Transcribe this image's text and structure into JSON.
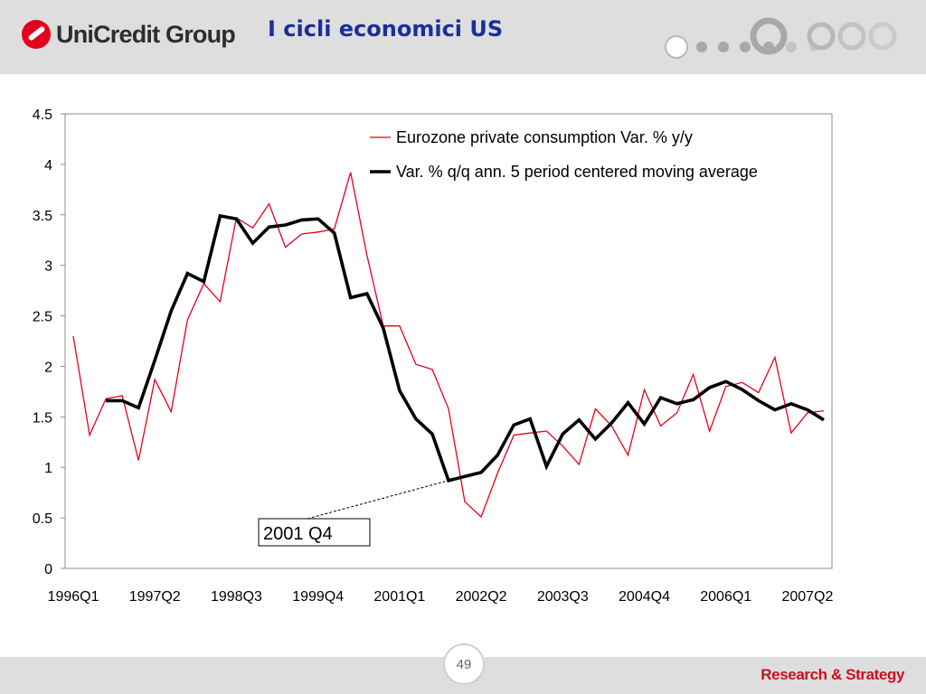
{
  "header": {
    "logo_text": "UniCredit Group",
    "title": "I cicli economici US",
    "colors": {
      "title": "#1a2f99",
      "logo_mark": "#e2001a",
      "band": "#dedede"
    }
  },
  "chart_data": {
    "type": "line",
    "x": [
      "1996Q1",
      "1996Q2",
      "1996Q3",
      "1996Q4",
      "1997Q1",
      "1997Q2",
      "1997Q3",
      "1997Q4",
      "1998Q1",
      "1998Q2",
      "1998Q3",
      "1998Q4",
      "1999Q1",
      "1999Q2",
      "1999Q3",
      "1999Q4",
      "2000Q1",
      "2000Q2",
      "2000Q3",
      "2000Q4",
      "2001Q1",
      "2001Q2",
      "2001Q3",
      "2001Q4",
      "2002Q1",
      "2002Q2",
      "2002Q3",
      "2002Q4",
      "2003Q1",
      "2003Q2",
      "2003Q3",
      "2003Q4",
      "2004Q1",
      "2004Q2",
      "2004Q3",
      "2004Q4",
      "2005Q1",
      "2005Q2",
      "2005Q3",
      "2005Q4",
      "2006Q1",
      "2006Q2",
      "2006Q3",
      "2006Q4",
      "2007Q1",
      "2007Q2",
      "2007Q3"
    ],
    "tick_labels": [
      "1996Q1",
      "1997Q2",
      "1998Q3",
      "1999Q4",
      "2001Q1",
      "2002Q2",
      "2003Q3",
      "2004Q4",
      "2006Q1",
      "2007Q2"
    ],
    "series": [
      {
        "name": "Eurozone private consumption Var. % y/y",
        "color": "#e3001b",
        "values": [
          2.3,
          1.32,
          1.68,
          1.71,
          1.07,
          1.87,
          1.55,
          2.46,
          2.82,
          2.64,
          3.47,
          3.37,
          3.61,
          3.18,
          3.31,
          3.33,
          3.36,
          3.92,
          3.1,
          2.4,
          2.4,
          2.02,
          1.97,
          1.58,
          0.66,
          0.51,
          0.94,
          1.32,
          1.34,
          1.36,
          1.21,
          1.03,
          1.58,
          1.41,
          1.12,
          1.77,
          1.41,
          1.54,
          1.92,
          1.36,
          1.8,
          1.84,
          1.74,
          2.09,
          1.34,
          1.54,
          1.56
        ]
      },
      {
        "name": "Var. % q/q ann. 5 period centered moving average",
        "color": "#000000",
        "values": [
          null,
          null,
          1.66,
          1.66,
          1.59,
          2.06,
          2.55,
          2.92,
          2.84,
          3.49,
          3.46,
          3.22,
          3.38,
          3.4,
          3.45,
          3.46,
          3.32,
          2.68,
          2.72,
          2.38,
          1.76,
          1.48,
          1.33,
          0.87,
          0.91,
          0.95,
          1.12,
          1.42,
          1.48,
          1.01,
          1.33,
          1.47,
          1.28,
          1.44,
          1.64,
          1.43,
          1.69,
          1.63,
          1.67,
          1.79,
          1.85,
          1.77,
          1.66,
          1.57,
          1.63,
          1.57,
          1.47
        ]
      }
    ],
    "ylim": [
      0,
      4.5
    ],
    "yticks": [
      "0",
      "0.5",
      "1",
      "1.5",
      "2",
      "2.5",
      "3",
      "3.5",
      "4",
      "4.5"
    ],
    "annotation": {
      "text": "2001 Q4",
      "target_x": "2001Q4",
      "target_y": 0.87
    },
    "legend": "top-right",
    "grid": false
  },
  "footer": {
    "page_number": "49",
    "brand": "Research & Strategy"
  }
}
